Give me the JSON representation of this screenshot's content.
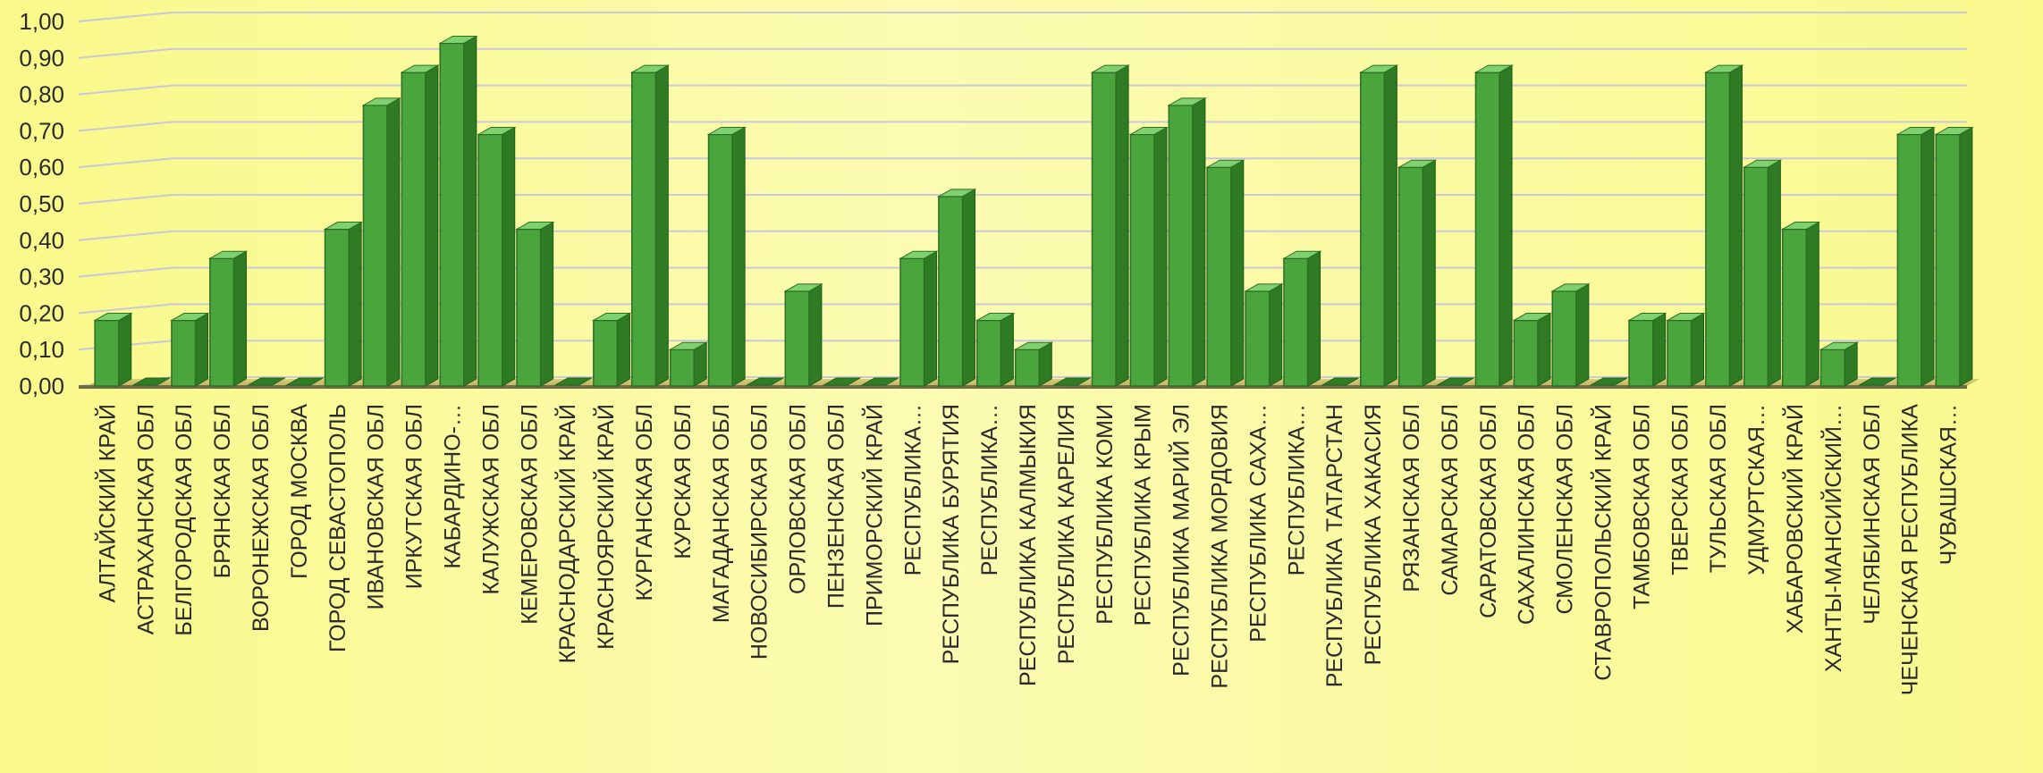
{
  "chart_data": {
    "type": "bar",
    "title": "",
    "xlabel": "",
    "ylabel": "",
    "ylim": [
      0,
      1
    ],
    "grid": true,
    "legend": "none",
    "bar_color": "#4aa63c",
    "yticks": [
      "0,00",
      "0,10",
      "0,20",
      "0,30",
      "0,40",
      "0,50",
      "0,60",
      "0,70",
      "0,80",
      "0,90",
      "1,00"
    ],
    "categories": [
      "АЛТАЙСКИЙ КРАЙ",
      "АСТРАХАНСКАЯ ОБЛ",
      "БЕЛГОРОДСКАЯ ОБЛ",
      "БРЯНСКАЯ ОБЛ",
      "ВОРОНЕЖСКАЯ ОБЛ",
      "ГОРОД МОСКВА",
      "ГОРОД СЕВАСТОПОЛЬ",
      "ИВАНОВСКАЯ ОБЛ",
      "ИРКУТСКАЯ ОБЛ",
      "КАБАРДИНО-…",
      "КАЛУЖСКАЯ ОБЛ",
      "КЕМЕРОВСКАЯ ОБЛ",
      "КРАСНОДАРСКИЙ КРАЙ",
      "КРАСНОЯРСКИЙ КРАЙ",
      "КУРГАНСКАЯ ОБЛ",
      "КУРСКАЯ ОБЛ",
      "МАГАДАНСКАЯ ОБЛ",
      "НОВОСИБИРСКАЯ ОБЛ",
      "ОРЛОВСКАЯ ОБЛ",
      "ПЕНЗЕНСКАЯ ОБЛ",
      "ПРИМОРСКИЙ КРАЙ",
      "РЕСПУБЛИКА…",
      "РЕСПУБЛИКА БУРЯТИЯ",
      "РЕСПУБЛИКА…",
      "РЕСПУБЛИКА КАЛМЫКИЯ",
      "РЕСПУБЛИКА КАРЕЛИЯ",
      "РЕСПУБЛИКА КОМИ",
      "РЕСПУБЛИКА КРЫМ",
      "РЕСПУБЛИКА МАРИЙ ЭЛ",
      "РЕСПУБЛИКА МОРДОВИЯ",
      "РЕСПУБЛИКА САХА…",
      "РЕСПУБЛИКА…",
      "РЕСПУБЛИКА ТАТАРСТАН",
      "РЕСПУБЛИКА ХАКАСИЯ",
      "РЯЗАНСКАЯ ОБЛ",
      "САМАРСКАЯ ОБЛ",
      "САРАТОВСКАЯ ОБЛ",
      "САХАЛИНСКАЯ ОБЛ",
      "СМОЛЕНСКАЯ ОБЛ",
      "СТАВРОПОЛЬСКИЙ КРАЙ",
      "ТАМБОВСКАЯ ОБЛ",
      "ТВЕРСКАЯ ОБЛ",
      "ТУЛЬСКАЯ ОБЛ",
      "УДМУРТСКАЯ…",
      "ХАБАРОВСКИЙ КРАЙ",
      "ХАНТЫ-МАНСИЙСКИЙ…",
      "ЧЕЛЯБИНСКАЯ ОБЛ",
      "ЧЕЧЕНСКАЯ РЕСПУБЛИКА",
      "ЧУВАШСКАЯ…"
    ],
    "values": [
      0.18,
      0.0,
      0.18,
      0.35,
      0.0,
      0.0,
      0.43,
      0.77,
      0.86,
      0.94,
      0.69,
      0.43,
      0.0,
      0.18,
      0.86,
      0.1,
      0.69,
      0.0,
      0.26,
      0.0,
      0.0,
      0.35,
      0.52,
      0.18,
      0.1,
      0.0,
      0.86,
      0.69,
      0.77,
      0.6,
      0.26,
      0.35,
      0.0,
      0.86,
      0.6,
      0.0,
      0.86,
      0.18,
      0.26,
      0.0,
      0.18,
      0.18,
      0.86,
      0.6,
      0.43,
      0.1,
      0.0,
      0.69,
      0.69
    ]
  }
}
